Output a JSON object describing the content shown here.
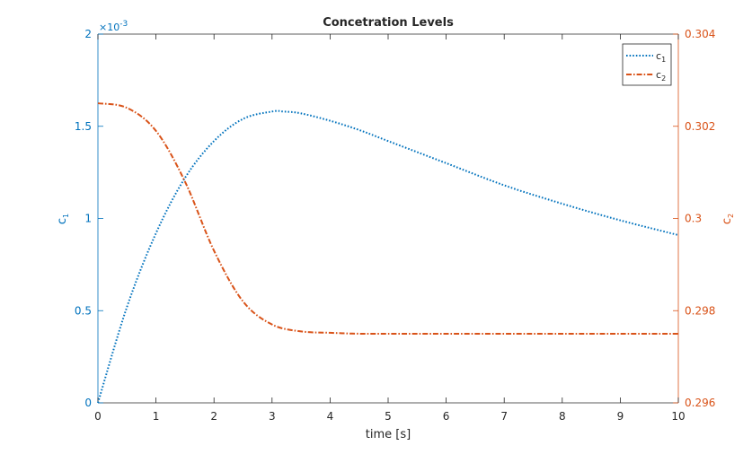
{
  "chart_data": {
    "type": "line",
    "title": "Concetration Levels",
    "xlabel": "time [s]",
    "xlim": [
      0,
      10
    ],
    "x_ticks": [
      "0",
      "1",
      "2",
      "3",
      "4",
      "5",
      "6",
      "7",
      "8",
      "9",
      "10"
    ],
    "grid": false,
    "legend_position": "top-right",
    "left_axis": {
      "label": "c",
      "label_subscript": "1",
      "ylim": [
        0,
        0.002
      ],
      "ticks": [
        "0",
        "0.5",
        "1",
        "1.5",
        "2"
      ],
      "exponent_label": "×10",
      "exponent_power": "-3",
      "color": "#0072BD"
    },
    "right_axis": {
      "label": "c",
      "label_subscript": "2",
      "ylim": [
        0.296,
        0.304
      ],
      "ticks": [
        "0.296",
        "0.298",
        "0.3",
        "0.302",
        "0.304"
      ],
      "color": "#D95319"
    },
    "series": [
      {
        "name": "c",
        "name_subscript": "1",
        "axis": "left",
        "color": "#0072BD",
        "style": "dotted",
        "x": [
          0,
          0.5,
          1,
          1.5,
          2,
          2.5,
          3,
          3.2,
          3.5,
          4,
          4.5,
          5,
          6,
          7,
          8,
          9,
          10
        ],
        "values": [
          0,
          0.00052,
          0.00092,
          0.00122,
          0.00142,
          0.00154,
          0.00158,
          0.00158,
          0.00157,
          0.00153,
          0.00148,
          0.00142,
          0.0013,
          0.00118,
          0.00108,
          0.00099,
          0.00091
        ]
      },
      {
        "name": "c",
        "name_subscript": "2",
        "axis": "right",
        "color": "#D95319",
        "style": "dash-dot",
        "x": [
          0,
          0.5,
          1,
          1.5,
          2,
          2.5,
          3,
          3.5,
          4,
          4.5,
          5,
          6,
          7,
          8,
          9,
          10
        ],
        "values": [
          0.3025,
          0.3024,
          0.3019,
          0.3008,
          0.2993,
          0.2982,
          0.2977,
          0.29755,
          0.29752,
          0.2975,
          0.2975,
          0.2975,
          0.2975,
          0.2975,
          0.2975,
          0.2975
        ]
      }
    ]
  }
}
